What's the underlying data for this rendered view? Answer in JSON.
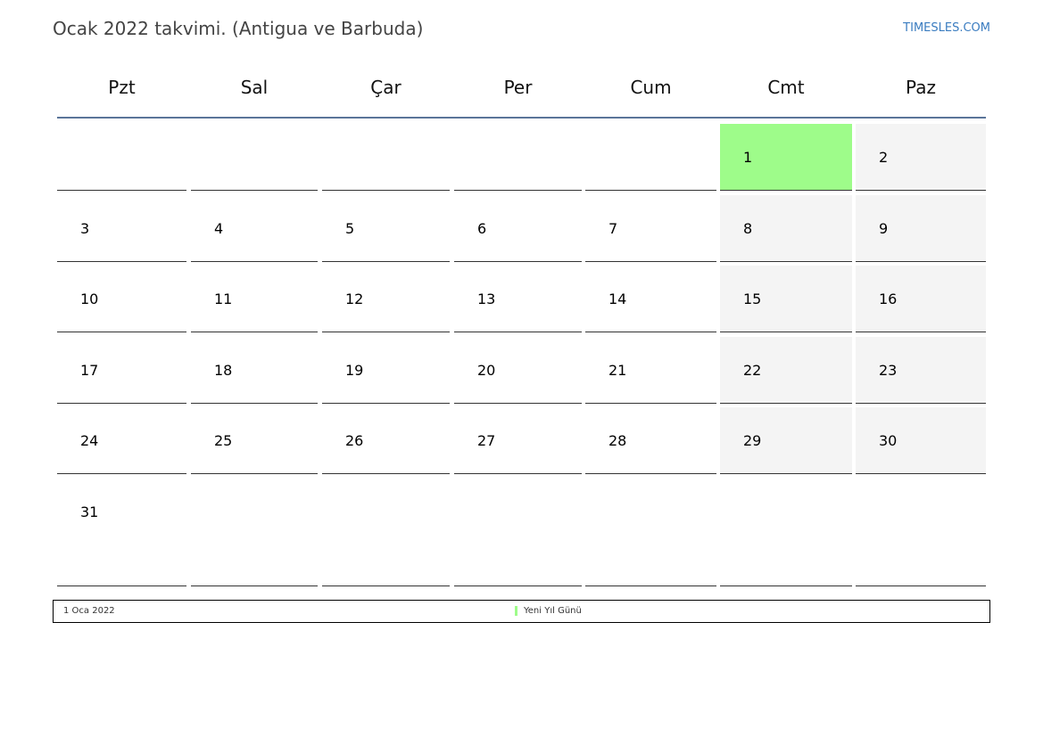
{
  "header": {
    "title": "Ocak 2022 takvimi. (Antigua ve Barbuda)",
    "brand": "TIMESLES.COM"
  },
  "weekdays": [
    "Pzt",
    "Sal",
    "Çar",
    "Per",
    "Cum",
    "Cmt",
    "Paz"
  ],
  "weeks": [
    [
      "",
      "",
      "",
      "",
      "",
      "1",
      "2"
    ],
    [
      "3",
      "4",
      "5",
      "6",
      "7",
      "8",
      "9"
    ],
    [
      "10",
      "11",
      "12",
      "13",
      "14",
      "15",
      "16"
    ],
    [
      "17",
      "18",
      "19",
      "20",
      "21",
      "22",
      "23"
    ],
    [
      "24",
      "25",
      "26",
      "27",
      "28",
      "29",
      "30"
    ],
    [
      "31",
      "",
      "",
      "",
      "",
      "",
      ""
    ]
  ],
  "holidays": [
    {
      "date": "1 Oca 2022",
      "name": "Yeni Yıl Günü",
      "day": "1",
      "color": "#9efc8a"
    }
  ],
  "colors": {
    "weekend": "#f4f4f4",
    "holiday": "#9efc8a",
    "header_line": "#5a7599",
    "brand": "#3a7cc0"
  }
}
